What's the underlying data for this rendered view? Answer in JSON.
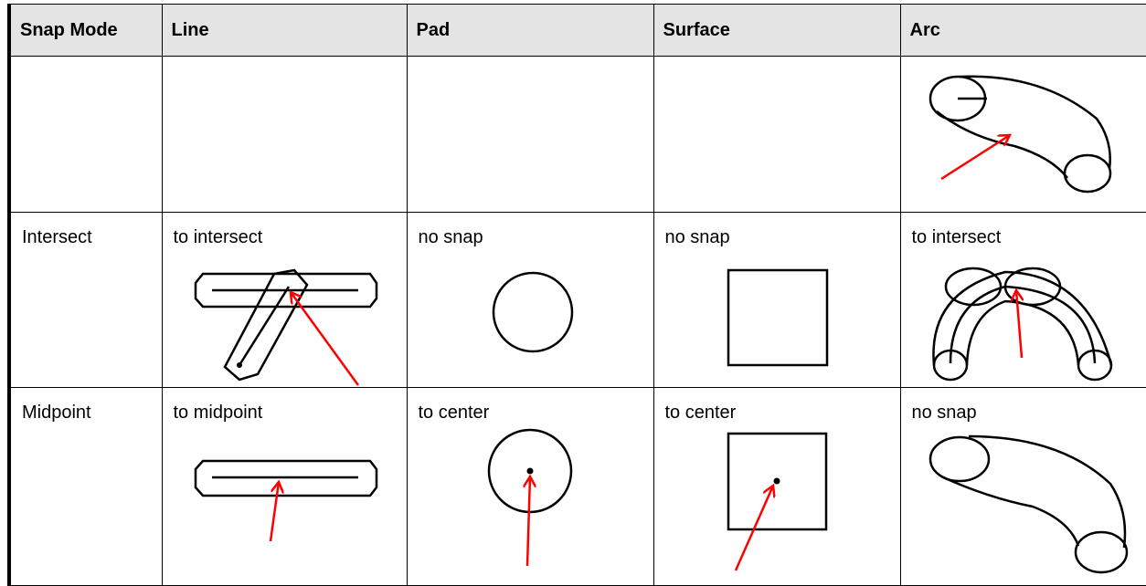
{
  "table": {
    "header": [
      "Snap Mode",
      "Line",
      "Pad",
      "Surface",
      "Arc"
    ],
    "rows": [
      [
        "Intersect",
        "to intersect",
        "no snap",
        "no snap",
        "to intersect"
      ],
      [
        "Midpoint",
        "to midpoint",
        "to center",
        "to center",
        "no snap"
      ]
    ]
  }
}
